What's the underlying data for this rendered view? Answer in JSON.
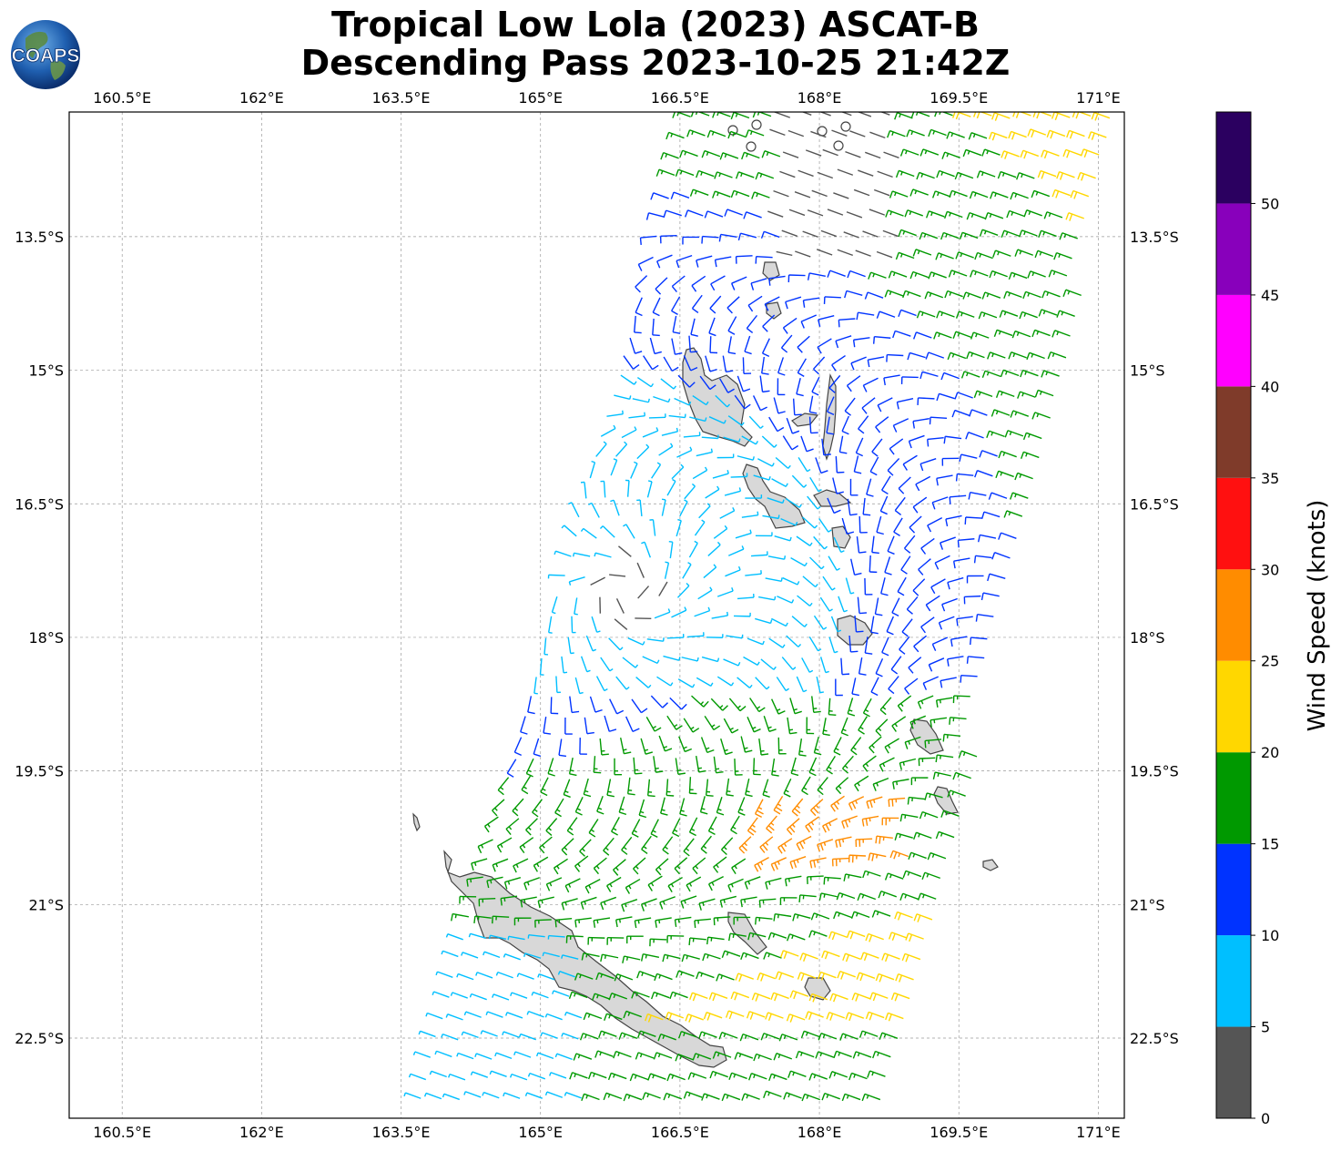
{
  "title": {
    "line1": "Tropical Low Lola (2023) ASCAT-B",
    "line2": "Descending Pass 2023-10-25 21:42Z"
  },
  "logo": {
    "text": "COAPS",
    "icon": "globe-logo-icon"
  },
  "map": {
    "lon_labels": [
      "160.5°E",
      "162°E",
      "163.5°E",
      "165°E",
      "166.5°E",
      "168°E",
      "169.5°E",
      "171°E"
    ],
    "lat_labels": [
      "13.5°S",
      "15°S",
      "16.5°S",
      "18°S",
      "19.5°S",
      "21°S",
      "22.5°S"
    ],
    "lon_range": [
      159.93,
      171.28
    ],
    "lat_range": [
      -23.4,
      -12.1
    ],
    "gridlines": true,
    "land_fill": "#d8d8d8",
    "coast_color": "#444444"
  },
  "colorbar": {
    "label": "Wind Speed (knots)",
    "tick_labels": [
      "0",
      "5",
      "10",
      "15",
      "20",
      "25",
      "30",
      "35",
      "40",
      "45",
      "50"
    ],
    "bins": [
      {
        "min": 0,
        "max": 5,
        "color": "#555555"
      },
      {
        "min": 5,
        "max": 10,
        "color": "#00bfff"
      },
      {
        "min": 10,
        "max": 15,
        "color": "#0033ff"
      },
      {
        "min": 15,
        "max": 20,
        "color": "#009900"
      },
      {
        "min": 20,
        "max": 25,
        "color": "#ffd700"
      },
      {
        "min": 25,
        "max": 30,
        "color": "#ff8c00"
      },
      {
        "min": 30,
        "max": 35,
        "color": "#ff1010"
      },
      {
        "min": 35,
        "max": 40,
        "color": "#7f3b2a"
      },
      {
        "min": 40,
        "max": 45,
        "color": "#ff00ff"
      },
      {
        "min": 45,
        "max": 50,
        "color": "#8800bb"
      },
      {
        "min": 50,
        "max": 55,
        "color": "#2b0060"
      }
    ]
  }
}
